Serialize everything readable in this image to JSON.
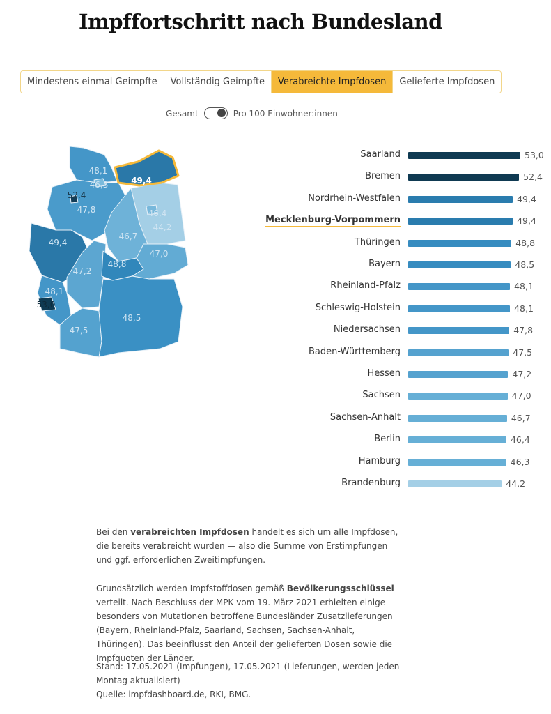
{
  "title": "Impffortschritt nach Bundesland",
  "tabs": [
    {
      "label": "Mindestens einmal Geimpfte",
      "active": false
    },
    {
      "label": "Vollständig Geimpfte",
      "active": false
    },
    {
      "label": "Verabreichte Impfdosen",
      "active": true
    },
    {
      "label": "Gelieferte Impfdosen",
      "active": false
    }
  ],
  "toggle": {
    "left_label": "Gesamt",
    "right_label": "Pro 100 Einwohner:innen",
    "state": "right"
  },
  "colors": {
    "accent": "#f5b93a",
    "darkest": "#0f3a52",
    "lightest": "#a4cfe6"
  },
  "map_labels": {
    "SH": "48,1",
    "HH": "46,3",
    "HB": "52,4",
    "NI": "47,8",
    "MV": "49,4",
    "BE": "46,4",
    "BB": "44,2",
    "ST": "46,7",
    "NW": "49,4",
    "HE": "47,2",
    "TH": "48,8",
    "SN": "47,0",
    "RP": "48,1",
    "SL": "53,0",
    "BW": "47,5",
    "BY": "48,5"
  },
  "selected_state": "Mecklenburg-Vorpommern",
  "chart_data": {
    "type": "bar",
    "orientation": "horizontal",
    "categories": [
      "Saarland",
      "Bremen",
      "Nordrhein-Westfalen",
      "Mecklenburg-Vorpommern",
      "Thüringen",
      "Bayern",
      "Rheinland-Pfalz",
      "Schleswig-Holstein",
      "Niedersachsen",
      "Baden-Württemberg",
      "Hessen",
      "Sachsen",
      "Sachsen-Anhalt",
      "Berlin",
      "Hamburg",
      "Brandenburg"
    ],
    "values": [
      53.0,
      52.4,
      49.4,
      49.4,
      48.8,
      48.5,
      48.1,
      48.1,
      47.8,
      47.5,
      47.2,
      47.0,
      46.7,
      46.4,
      46.3,
      44.2
    ],
    "value_labels": [
      "53,0",
      "52,4",
      "49,4",
      "49,4",
      "48,8",
      "48,5",
      "48,1",
      "48,1",
      "47,8",
      "47,5",
      "47,2",
      "47,0",
      "46,7",
      "46,4",
      "46,3",
      "44,2"
    ],
    "xlim": [
      0,
      53.0
    ]
  },
  "description": {
    "p1_pre": "Bei den ",
    "p1_bold": "verabreichten Impfdosen",
    "p1_post": " handelt es sich um alle Impfdosen, die bereits verabreicht wurden — also die Summe von Erstimpfungen und ggf. erforderlichen Zweitimpfungen.",
    "p2_pre": "Grundsätzlich werden Impfstoffdosen gemäß ",
    "p2_bold": "Bevölkerungsschlüssel",
    "p2_post": " verteilt. Nach Beschluss der MPK vom 19. März 2021 erhielten einige besonders von Mutationen betroffene Bundesländer Zusatzlieferungen (Bayern, Rheinland-Pfalz, Saarland, Sachsen, Sachsen-Anhalt, Thüringen). Das beeinflusst den Anteil der gelieferten Dosen sowie die Impfquoten der Länder.",
    "stand": "Stand: 17.05.2021 (Impfungen), 17.05.2021 (Lieferungen, werden jeden Montag aktualisiert)",
    "quelle": "Quelle: impfdashboard.de, RKI, BMG."
  }
}
